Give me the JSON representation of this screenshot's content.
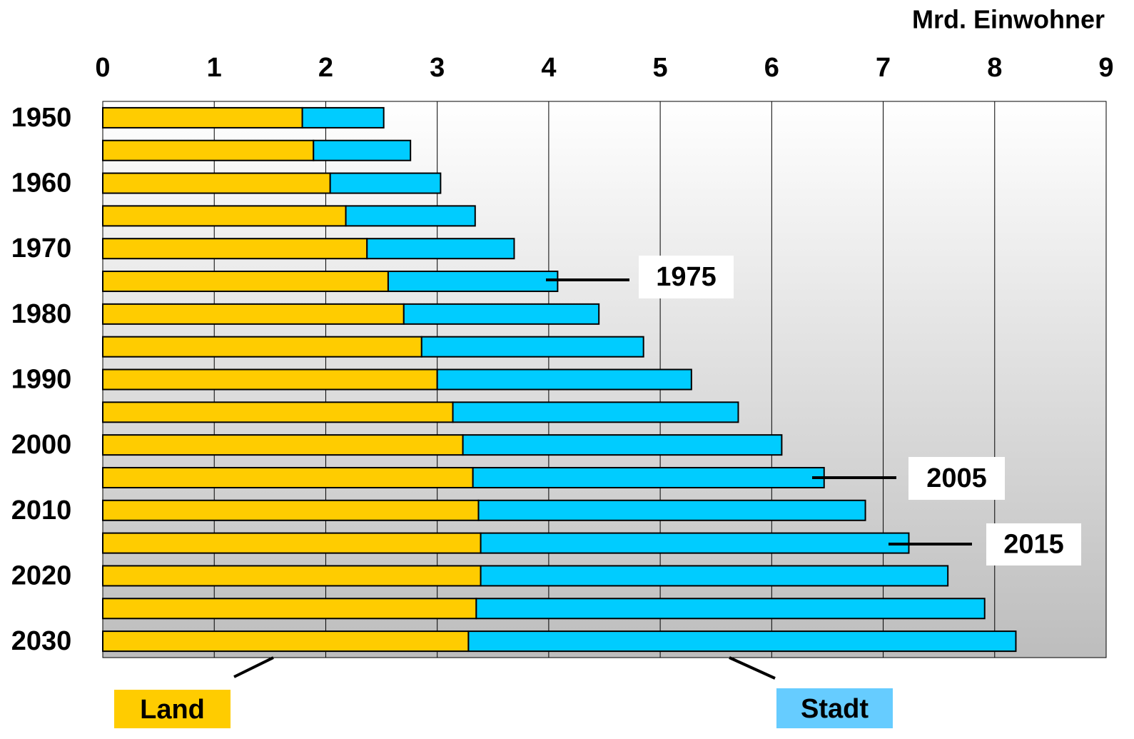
{
  "chart_data": {
    "type": "bar",
    "orientation": "horizontal",
    "stacked": true,
    "x_axis_label": "Mrd. Einwohner",
    "categories": [
      "1950",
      null,
      "1960",
      null,
      "1970",
      null,
      "1980",
      null,
      "1990",
      null,
      "2000",
      null,
      "2010",
      null,
      "2020",
      null,
      "2030"
    ],
    "series": [
      {
        "name": "Land",
        "color": "#ffcc00",
        "values": [
          1.79,
          1.89,
          2.04,
          2.18,
          2.37,
          2.56,
          2.7,
          2.86,
          3.0,
          3.14,
          3.23,
          3.32,
          3.37,
          3.39,
          3.39,
          3.35,
          3.28
        ]
      },
      {
        "name": "Stadt",
        "color": "#00ccff",
        "values": [
          0.73,
          0.87,
          0.99,
          1.16,
          1.32,
          1.52,
          1.75,
          1.99,
          2.28,
          2.56,
          2.86,
          3.15,
          3.47,
          3.84,
          4.19,
          4.56,
          4.91
        ]
      }
    ],
    "xlim": [
      0,
      9
    ],
    "xticks": [
      0,
      1,
      2,
      3,
      4,
      5,
      6,
      7,
      8,
      9
    ],
    "grid": true,
    "annotations": [
      "1975",
      "2005",
      "2015"
    ]
  }
}
